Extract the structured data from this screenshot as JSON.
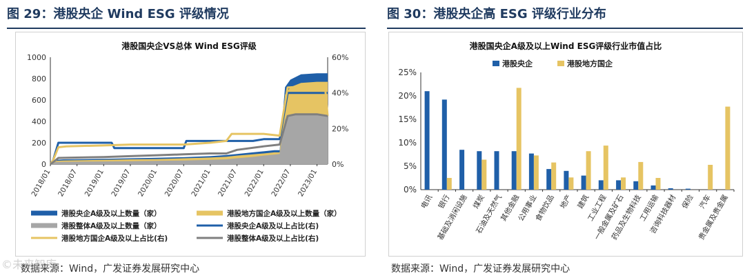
{
  "left": {
    "figure_title": "图 29：港股央企 Wind ESG 评级情况",
    "source": "数据来源：Wind，广发证券发展研究中心"
  },
  "right": {
    "figure_title": "图 30：港股央企高 ESG 评级行业分布",
    "source": "数据来源：Wind，广发证券发展研究中心"
  },
  "watermark": "©未来智库",
  "colors": {
    "blue": "#1f5fa8",
    "yellow": "#e6c463",
    "gray": "#a6a6a6",
    "dark_gray": "#7f7f7f",
    "navy": "#1f3a5f"
  },
  "chart_data": [
    {
      "type": "area",
      "title": "港股国央企VS总体 Wind ESG评级",
      "x_ticks": [
        "2018/01",
        "2018/07",
        "2019/01",
        "2019/07",
        "2020/01",
        "2020/07",
        "2021/01",
        "2021/07",
        "2022/01",
        "2022/07",
        "2023/01"
      ],
      "x_range": [
        2018.0,
        2023.2
      ],
      "ylim_left": [
        0,
        1000
      ],
      "yticks_left": [
        "0",
        "200",
        "400",
        "600",
        "800",
        "1000"
      ],
      "ylim_right": [
        0,
        0.6
      ],
      "yticks_right": [
        "0%",
        "20%",
        "40%",
        "60%"
      ],
      "area_series": [
        {
          "name": "港股央企A级及以上数量（家）",
          "axis": "left",
          "points": [
            [
              2018.0,
              0
            ],
            [
              2018.05,
              10
            ],
            [
              2018.1,
              40
            ],
            [
              2018.25,
              45
            ],
            [
              2019.0,
              50
            ],
            [
              2019.5,
              55
            ],
            [
              2020.0,
              60
            ],
            [
              2020.5,
              65
            ],
            [
              2021.0,
              75
            ],
            [
              2021.3,
              85
            ],
            [
              2021.5,
              95
            ],
            [
              2021.8,
              110
            ],
            [
              2022.0,
              120
            ],
            [
              2022.2,
              130
            ],
            [
              2022.3,
              130
            ],
            [
              2022.4,
              720
            ],
            [
              2022.5,
              790
            ],
            [
              2022.7,
              840
            ],
            [
              2023.0,
              850
            ],
            [
              2023.2,
              850
            ]
          ]
        },
        {
          "name": "港股地方国企A级及以上数量（家）",
          "axis": "left",
          "points": [
            [
              2018.0,
              0
            ],
            [
              2018.05,
              8
            ],
            [
              2018.1,
              30
            ],
            [
              2018.25,
              35
            ],
            [
              2019.0,
              40
            ],
            [
              2019.5,
              45
            ],
            [
              2020.0,
              48
            ],
            [
              2020.5,
              55
            ],
            [
              2021.0,
              62
            ],
            [
              2021.3,
              70
            ],
            [
              2021.5,
              80
            ],
            [
              2021.8,
              92
            ],
            [
              2022.0,
              100
            ],
            [
              2022.2,
              110
            ],
            [
              2022.3,
              110
            ],
            [
              2022.4,
              650
            ],
            [
              2022.5,
              720
            ],
            [
              2022.7,
              760
            ],
            [
              2023.0,
              770
            ],
            [
              2023.2,
              770
            ]
          ]
        },
        {
          "name": "港股整体A级及以上数量（家）",
          "axis": "left",
          "points": [
            [
              2018.0,
              0
            ],
            [
              2018.05,
              5
            ],
            [
              2018.1,
              20
            ],
            [
              2018.25,
              22
            ],
            [
              2019.0,
              25
            ],
            [
              2019.5,
              28
            ],
            [
              2020.0,
              30
            ],
            [
              2020.5,
              34
            ],
            [
              2021.0,
              40
            ],
            [
              2021.3,
              45
            ],
            [
              2021.5,
              55
            ],
            [
              2021.8,
              68
            ],
            [
              2022.0,
              80
            ],
            [
              2022.2,
              90
            ],
            [
              2022.3,
              95
            ],
            [
              2022.4,
              420
            ],
            [
              2022.5,
              460
            ],
            [
              2022.7,
              470
            ],
            [
              2023.0,
              470
            ],
            [
              2023.2,
              460
            ]
          ]
        }
      ],
      "line_series": [
        {
          "name": "港股央企A级及以上占比(右)",
          "axis": "right",
          "points": [
            [
              2018.0,
              0.0
            ],
            [
              2018.05,
              0.02
            ],
            [
              2018.15,
              0.12
            ],
            [
              2019.0,
              0.12
            ],
            [
              2019.15,
              0.12
            ],
            [
              2019.2,
              0.09
            ],
            [
              2020.0,
              0.09
            ],
            [
              2020.5,
              0.09
            ],
            [
              2020.55,
              0.13
            ],
            [
              2021.0,
              0.13
            ],
            [
              2021.3,
              0.13
            ],
            [
              2021.5,
              0.13
            ],
            [
              2021.8,
              0.13
            ],
            [
              2022.0,
              0.14
            ],
            [
              2022.3,
              0.14
            ],
            [
              2022.45,
              0.4
            ],
            [
              2023.0,
              0.4
            ],
            [
              2023.2,
              0.4
            ]
          ]
        },
        {
          "name": "港股地方国企A级及以上占比(右)",
          "axis": "right",
          "points": [
            [
              2018.0,
              0.0
            ],
            [
              2018.05,
              0.02
            ],
            [
              2018.15,
              0.095
            ],
            [
              2018.3,
              0.1
            ],
            [
              2019.0,
              0.105
            ],
            [
              2019.5,
              0.11
            ],
            [
              2020.0,
              0.11
            ],
            [
              2020.5,
              0.11
            ],
            [
              2021.0,
              0.12
            ],
            [
              2021.3,
              0.13
            ],
            [
              2021.4,
              0.17
            ],
            [
              2022.0,
              0.17
            ],
            [
              2022.3,
              0.16
            ],
            [
              2022.45,
              0.43
            ],
            [
              2023.0,
              0.44
            ],
            [
              2023.15,
              0.44
            ],
            [
              2023.2,
              0.27
            ]
          ]
        },
        {
          "name": "港股整体A级及以上占比(右)",
          "axis": "right",
          "points": [
            [
              2018.0,
              0.0
            ],
            [
              2018.05,
              0.01
            ],
            [
              2018.15,
              0.035
            ],
            [
              2019.0,
              0.04
            ],
            [
              2019.5,
              0.045
            ],
            [
              2020.0,
              0.05
            ],
            [
              2020.5,
              0.055
            ],
            [
              2021.0,
              0.06
            ],
            [
              2021.3,
              0.06
            ],
            [
              2021.5,
              0.08
            ],
            [
              2022.0,
              0.1
            ],
            [
              2022.3,
              0.11
            ],
            [
              2022.45,
              0.27
            ],
            [
              2022.6,
              0.28
            ],
            [
              2023.0,
              0.28
            ],
            [
              2023.2,
              0.27
            ]
          ]
        }
      ]
    },
    {
      "type": "bar",
      "title": "港股国央企A级及以上Wind ESG评级行业市值占比",
      "categories": [
        "电讯",
        "银行",
        "基础及消闲设施",
        "煤炭",
        "石油及天然气",
        "其他金融",
        "公用事业",
        "食物饮品",
        "地产",
        "建筑",
        "工业工程",
        "一般金属及矿石",
        "药品及生物科技",
        "工用运输",
        "咨询科技器材",
        "保险",
        "汽车",
        "贵金属及贵金属"
      ],
      "ylim": [
        0,
        0.25
      ],
      "yticks": [
        "0%",
        "5%",
        "10%",
        "15%",
        "20%",
        "25%"
      ],
      "series": [
        {
          "name": "港股央企",
          "values": [
            0.21,
            0.192,
            0.085,
            0.082,
            0.082,
            0.082,
            0.077,
            0.044,
            0.04,
            0.03,
            0.02,
            0.02,
            0.018,
            0.009,
            0.003,
            0.002,
            0,
            0
          ]
        },
        {
          "name": "港股地方国企",
          "values": [
            0,
            0.025,
            0,
            0.064,
            0,
            0.217,
            0.073,
            0.058,
            0.026,
            0.082,
            0.094,
            0.026,
            0.059,
            0.025,
            0,
            0,
            0.053,
            0.177
          ]
        }
      ]
    }
  ]
}
